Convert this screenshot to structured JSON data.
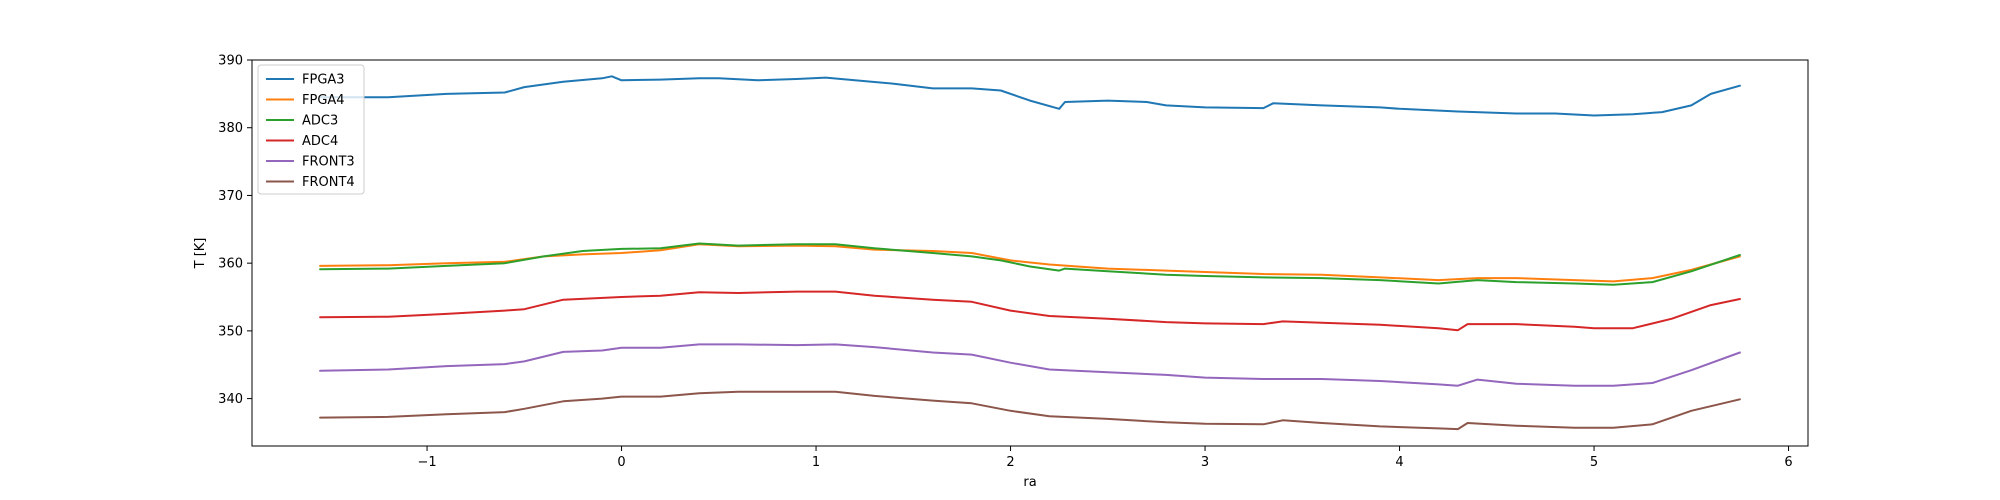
{
  "chart_data": {
    "type": "line",
    "title": "",
    "xlabel": "ra",
    "ylabel": "T [K]",
    "xlim": [
      -1.9,
      6.1
    ],
    "ylim": [
      333,
      390
    ],
    "xticks": [
      -1,
      0,
      1,
      2,
      3,
      4,
      5,
      6
    ],
    "yticks": [
      340,
      350,
      360,
      370,
      380,
      390
    ],
    "grid": false,
    "legend_position": "top-left",
    "series": [
      {
        "name": "FPGA3",
        "color": "#1f77b4",
        "x": [
          -1.55,
          -1.2,
          -0.9,
          -0.6,
          -0.5,
          -0.3,
          -0.1,
          -0.05,
          0.0,
          0.2,
          0.4,
          0.5,
          0.7,
          0.9,
          1.05,
          1.2,
          1.4,
          1.6,
          1.8,
          1.95,
          2.1,
          2.25,
          2.28,
          2.5,
          2.7,
          2.8,
          3.0,
          3.3,
          3.35,
          3.6,
          3.9,
          4.0,
          4.3,
          4.6,
          4.8,
          5.0,
          5.2,
          5.35,
          5.5,
          5.6,
          5.75
        ],
        "y": [
          384.5,
          384.5,
          385.0,
          385.2,
          386.0,
          386.8,
          387.3,
          387.6,
          387.0,
          387.1,
          387.3,
          387.3,
          387.0,
          387.2,
          387.4,
          387.0,
          386.5,
          385.8,
          385.8,
          385.5,
          384.0,
          382.8,
          383.8,
          384.0,
          383.8,
          383.3,
          383.0,
          382.9,
          383.6,
          383.3,
          383.0,
          382.8,
          382.4,
          382.1,
          382.1,
          381.8,
          382.0,
          382.3,
          383.3,
          385.0,
          386.2
        ]
      },
      {
        "name": "FPGA4",
        "color": "#ff7f0e",
        "x": [
          -1.55,
          -1.2,
          -0.9,
          -0.6,
          -0.4,
          -0.2,
          0.0,
          0.2,
          0.4,
          0.6,
          0.9,
          1.1,
          1.3,
          1.6,
          1.8,
          2.0,
          2.2,
          2.5,
          2.8,
          3.0,
          3.3,
          3.6,
          3.9,
          4.2,
          4.4,
          4.6,
          4.9,
          5.1,
          5.3,
          5.5,
          5.75
        ],
        "y": [
          359.6,
          359.7,
          360.0,
          360.2,
          361.0,
          361.3,
          361.5,
          361.9,
          362.8,
          362.5,
          362.6,
          362.5,
          362.0,
          361.8,
          361.5,
          360.4,
          359.8,
          359.2,
          358.9,
          358.7,
          358.4,
          358.3,
          357.9,
          357.5,
          357.8,
          357.8,
          357.5,
          357.3,
          357.8,
          359.0,
          361.0
        ]
      },
      {
        "name": "ADC3",
        "color": "#2ca02c",
        "x": [
          -1.55,
          -1.2,
          -0.9,
          -0.6,
          -0.4,
          -0.2,
          0.0,
          0.2,
          0.4,
          0.6,
          0.9,
          1.1,
          1.3,
          1.6,
          1.8,
          1.95,
          2.1,
          2.25,
          2.28,
          2.5,
          2.8,
          3.0,
          3.3,
          3.6,
          3.9,
          4.2,
          4.4,
          4.6,
          4.9,
          5.1,
          5.3,
          5.5,
          5.75
        ],
        "y": [
          359.1,
          359.2,
          359.6,
          360.0,
          361.0,
          361.8,
          362.1,
          362.2,
          362.9,
          362.6,
          362.8,
          362.8,
          362.2,
          361.5,
          361.0,
          360.4,
          359.5,
          358.9,
          359.2,
          358.8,
          358.3,
          358.1,
          357.9,
          357.8,
          357.5,
          357.0,
          357.5,
          357.2,
          357.0,
          356.8,
          357.2,
          358.8,
          361.2
        ]
      },
      {
        "name": "ADC4",
        "color": "#d62728",
        "x": [
          -1.55,
          -1.2,
          -0.9,
          -0.6,
          -0.5,
          -0.3,
          0.0,
          0.2,
          0.4,
          0.6,
          0.9,
          1.1,
          1.3,
          1.6,
          1.8,
          2.0,
          2.2,
          2.5,
          2.8,
          3.0,
          3.3,
          3.4,
          3.6,
          3.9,
          4.2,
          4.3,
          4.35,
          4.6,
          4.9,
          5.0,
          5.2,
          5.4,
          5.6,
          5.75
        ],
        "y": [
          352.0,
          352.1,
          352.5,
          353.0,
          353.2,
          354.6,
          355.0,
          355.2,
          355.7,
          355.6,
          355.8,
          355.8,
          355.2,
          354.6,
          354.3,
          353.0,
          352.2,
          351.8,
          351.3,
          351.1,
          351.0,
          351.4,
          351.2,
          350.9,
          350.4,
          350.1,
          351.0,
          351.0,
          350.6,
          350.4,
          350.4,
          351.8,
          353.8,
          354.7
        ]
      },
      {
        "name": "FRONT3",
        "color": "#9467bd",
        "x": [
          -1.55,
          -1.2,
          -0.9,
          -0.6,
          -0.5,
          -0.3,
          -0.1,
          0.0,
          0.2,
          0.4,
          0.6,
          0.9,
          1.1,
          1.3,
          1.6,
          1.8,
          2.0,
          2.2,
          2.5,
          2.8,
          3.0,
          3.3,
          3.6,
          3.9,
          4.2,
          4.3,
          4.4,
          4.6,
          4.9,
          5.1,
          5.3,
          5.5,
          5.75
        ],
        "y": [
          344.1,
          344.3,
          344.8,
          345.1,
          345.5,
          346.9,
          347.1,
          347.5,
          347.5,
          348.0,
          348.0,
          347.9,
          348.0,
          347.6,
          346.8,
          346.5,
          345.3,
          344.3,
          343.9,
          343.5,
          343.1,
          342.9,
          342.9,
          342.6,
          342.1,
          341.9,
          342.8,
          342.2,
          341.9,
          341.9,
          342.3,
          344.2,
          346.8
        ]
      },
      {
        "name": "FRONT4",
        "color": "#8c564b",
        "x": [
          -1.55,
          -1.2,
          -0.9,
          -0.6,
          -0.5,
          -0.3,
          -0.1,
          0.0,
          0.2,
          0.4,
          0.6,
          0.9,
          1.1,
          1.3,
          1.6,
          1.8,
          2.0,
          2.2,
          2.5,
          2.8,
          3.0,
          3.3,
          3.4,
          3.6,
          3.9,
          4.2,
          4.3,
          4.35,
          4.6,
          4.9,
          5.1,
          5.3,
          5.5,
          5.75
        ],
        "y": [
          337.2,
          337.3,
          337.7,
          338.0,
          338.5,
          339.6,
          340.0,
          340.3,
          340.3,
          340.8,
          341.0,
          341.0,
          341.0,
          340.4,
          339.7,
          339.3,
          338.2,
          337.4,
          337.0,
          336.5,
          336.3,
          336.2,
          336.8,
          336.4,
          335.9,
          335.6,
          335.5,
          336.4,
          336.0,
          335.7,
          335.7,
          336.2,
          338.2,
          339.9
        ]
      }
    ]
  }
}
